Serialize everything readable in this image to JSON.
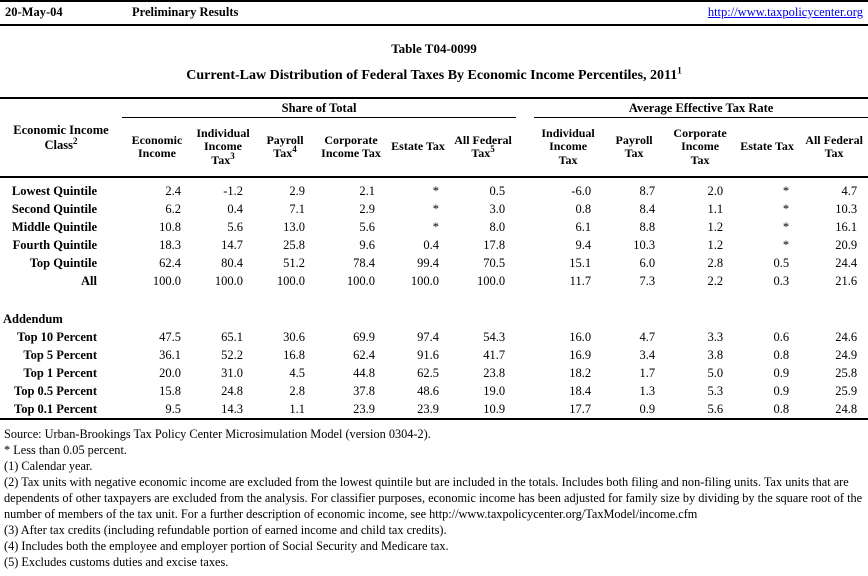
{
  "page": {
    "date": "20-May-04",
    "status": "Preliminary Results",
    "url": "http://www.taxpolicycenter.org",
    "title": "Table T04-0099",
    "subtitle": "Current-Law Distribution of Federal Taxes By Economic Income Percentiles, 2011",
    "subtitle_sup": "1"
  },
  "table": {
    "groups": {
      "share": "Share of Total",
      "rate": "Average Effective Tax Rate"
    },
    "label_col": {
      "line1": "Economic Income",
      "line2": "Class",
      "sup": "2"
    },
    "share_columns": [
      {
        "lines": [
          "Economic",
          "Income"
        ],
        "sup": ""
      },
      {
        "lines": [
          "Individual",
          "Income",
          "Tax"
        ],
        "sup": "3"
      },
      {
        "lines": [
          "Payroll",
          "Tax"
        ],
        "sup": "4"
      },
      {
        "lines": [
          "Corporate",
          "Income Tax"
        ],
        "sup": ""
      },
      {
        "lines": [
          "Estate Tax"
        ],
        "sup": ""
      },
      {
        "lines": [
          "All Federal",
          "Tax"
        ],
        "sup": "5"
      }
    ],
    "rate_columns": [
      {
        "lines": [
          "Individual",
          "Income",
          "Tax"
        ],
        "sup": ""
      },
      {
        "lines": [
          "Payroll",
          "Tax"
        ],
        "sup": ""
      },
      {
        "lines": [
          "Corporate",
          "Income",
          "Tax"
        ],
        "sup": ""
      },
      {
        "lines": [
          "Estate Tax"
        ],
        "sup": ""
      },
      {
        "lines": [
          "All Federal",
          "Tax"
        ],
        "sup": ""
      }
    ],
    "rows": [
      {
        "label": "Lowest Quintile",
        "share": [
          "2.4",
          "-1.2",
          "2.9",
          "2.1",
          "*",
          "0.5"
        ],
        "rate": [
          "-6.0",
          "8.7",
          "2.0",
          "*",
          "4.7"
        ]
      },
      {
        "label": "Second Quintile",
        "share": [
          "6.2",
          "0.4",
          "7.1",
          "2.9",
          "*",
          "3.0"
        ],
        "rate": [
          "0.8",
          "8.4",
          "1.1",
          "*",
          "10.3"
        ]
      },
      {
        "label": "Middle Quintile",
        "share": [
          "10.8",
          "5.6",
          "13.0",
          "5.6",
          "*",
          "8.0"
        ],
        "rate": [
          "6.1",
          "8.8",
          "1.2",
          "*",
          "16.1"
        ]
      },
      {
        "label": "Fourth Quintile",
        "share": [
          "18.3",
          "14.7",
          "25.8",
          "9.6",
          "0.4",
          "17.8"
        ],
        "rate": [
          "9.4",
          "10.3",
          "1.2",
          "*",
          "20.9"
        ]
      },
      {
        "label": "Top Quintile",
        "share": [
          "62.4",
          "80.4",
          "51.2",
          "78.4",
          "99.4",
          "70.5"
        ],
        "rate": [
          "15.1",
          "6.0",
          "2.8",
          "0.5",
          "24.4"
        ]
      },
      {
        "label": "All",
        "share": [
          "100.0",
          "100.0",
          "100.0",
          "100.0",
          "100.0",
          "100.0"
        ],
        "rate": [
          "11.7",
          "7.3",
          "2.2",
          "0.3",
          "21.6"
        ]
      }
    ],
    "addendum_label": "Addendum",
    "addendum_rows": [
      {
        "label": "Top 10 Percent",
        "share": [
          "47.5",
          "65.1",
          "30.6",
          "69.9",
          "97.4",
          "54.3"
        ],
        "rate": [
          "16.0",
          "4.7",
          "3.3",
          "0.6",
          "24.6"
        ]
      },
      {
        "label": "Top 5 Percent",
        "share": [
          "36.1",
          "52.2",
          "16.8",
          "62.4",
          "91.6",
          "41.7"
        ],
        "rate": [
          "16.9",
          "3.4",
          "3.8",
          "0.8",
          "24.9"
        ]
      },
      {
        "label": "Top 1 Percent",
        "share": [
          "20.0",
          "31.0",
          "4.5",
          "44.8",
          "62.5",
          "23.8"
        ],
        "rate": [
          "18.2",
          "1.7",
          "5.0",
          "0.9",
          "25.8"
        ]
      },
      {
        "label": "Top 0.5 Percent",
        "share": [
          "15.8",
          "24.8",
          "2.8",
          "37.8",
          "48.6",
          "19.0"
        ],
        "rate": [
          "18.4",
          "1.3",
          "5.3",
          "0.9",
          "25.9"
        ]
      },
      {
        "label": "Top 0.1 Percent",
        "share": [
          "9.5",
          "14.3",
          "1.1",
          "23.9",
          "23.9",
          "10.9"
        ],
        "rate": [
          "17.7",
          "0.9",
          "5.6",
          "0.8",
          "24.8"
        ]
      }
    ]
  },
  "footnotes": [
    "Source: Urban-Brookings Tax Policy Center Microsimulation Model (version 0304-2).",
    "* Less than 0.05 percent.",
    "(1) Calendar year.",
    "(2) Tax units with negative economic income are excluded from the lowest quintile but are included in the totals. Includes both filing and non-filing units. Tax units that are dependents of other taxpayers are excluded from the analysis. For classifier purposes, economic income has been adjusted for family size by dividing by the square root of the number of members of the tax unit.  For a further description of economic income, see http://www.taxpolicycenter.org/TaxModel/income.cfm",
    "(3) After tax credits (including refundable portion of earned income and child tax credits).",
    "(4) Includes both the employee and employer portion of Social Security and Medicare tax.",
    "(5) Excludes customs duties and excise taxes."
  ],
  "colors": {
    "link": "#0000ee",
    "text": "#000000",
    "background": "#ffffff"
  }
}
